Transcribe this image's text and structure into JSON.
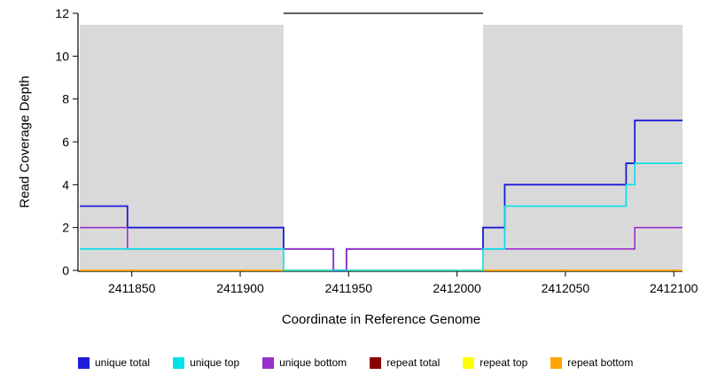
{
  "chart_data": {
    "type": "line",
    "step": true,
    "title": "",
    "xlabel": "Coordinate in Reference Genome",
    "ylabel": "Read Coverage Depth",
    "xlim": [
      2411826,
      2412104
    ],
    "ylim": [
      0,
      12
    ],
    "x_ticks": [
      2411850,
      2411900,
      2411950,
      2412000,
      2412050,
      2412100
    ],
    "y_ticks": [
      0,
      2,
      4,
      6,
      8,
      10,
      12
    ],
    "grid": false,
    "shade_color": "#d9d9d9",
    "shaded_regions": [
      [
        2411826,
        2411920
      ],
      [
        2412012,
        2412104
      ]
    ],
    "top_marker": {
      "y": 12,
      "x": [
        2411920,
        2412012
      ],
      "color": "#000000"
    },
    "series": [
      {
        "id": "repeat-total",
        "name": "repeat total",
        "color": "#8b0000",
        "width": 1.4,
        "segments": [
          [
            2411826,
            2412104,
            0
          ]
        ]
      },
      {
        "id": "repeat-top",
        "name": "repeat top",
        "color": "#ffff00",
        "width": 1.4,
        "segments": [
          [
            2411826,
            2412104,
            0
          ]
        ]
      },
      {
        "id": "repeat-bottom",
        "name": "repeat bottom",
        "color": "#ffa500",
        "width": 1.4,
        "segments": [
          [
            2411826,
            2412104,
            0
          ]
        ]
      },
      {
        "id": "unique-total",
        "name": "unique total",
        "color": "#1c1cd6",
        "width": 1.8,
        "segments": [
          [
            2411826,
            2411848,
            3
          ],
          [
            2411848,
            2411920,
            2
          ],
          [
            2411920,
            2411943,
            1
          ],
          [
            2411943,
            2411949,
            0
          ],
          [
            2411949,
            2412012,
            1
          ],
          [
            2412012,
            2412022,
            2
          ],
          [
            2412022,
            2412078,
            4
          ],
          [
            2412078,
            2412082,
            5
          ],
          [
            2412082,
            2412104,
            7
          ]
        ]
      },
      {
        "id": "unique-bottom",
        "name": "unique bottom",
        "color": "#9932cc",
        "width": 1.6,
        "segments": [
          [
            2411826,
            2411848,
            2
          ],
          [
            2411848,
            2411943,
            1
          ],
          [
            2411943,
            2411949,
            0
          ],
          [
            2411949,
            2412082,
            1
          ],
          [
            2412082,
            2412104,
            2
          ]
        ]
      },
      {
        "id": "unique-top",
        "name": "unique top",
        "color": "#00e1e8",
        "width": 1.6,
        "segments": [
          [
            2411826,
            2411920,
            1
          ],
          [
            2411920,
            2412012,
            0
          ],
          [
            2412012,
            2412022,
            1
          ],
          [
            2412022,
            2412078,
            3
          ],
          [
            2412078,
            2412082,
            4
          ],
          [
            2412082,
            2412104,
            5
          ]
        ]
      }
    ],
    "legend_position": "bottom",
    "legend": [
      {
        "label": "unique total",
        "color": "#1c1cd6"
      },
      {
        "label": "unique top",
        "color": "#00e1e8"
      },
      {
        "label": "unique bottom",
        "color": "#9932cc"
      },
      {
        "label": "repeat total",
        "color": "#8b0000"
      },
      {
        "label": "repeat top",
        "color": "#ffff00"
      },
      {
        "label": "repeat bottom",
        "color": "#ffa500"
      }
    ]
  }
}
